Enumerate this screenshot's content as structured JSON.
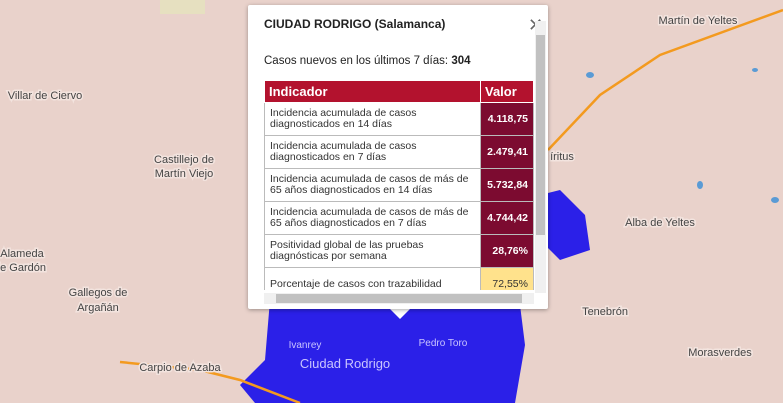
{
  "map": {
    "labels": [
      "Martín de Yeltes",
      "Villar de Ciervo",
      "Castillejo de",
      "Martín Viejo",
      "Alameda",
      "de Gardón",
      "Gallegos de",
      "Argañán",
      "Carpio de Azaba",
      "Ivanrey",
      "Ciudad Rodrigo",
      "Pedro Toro",
      "Tenebrón",
      "Morasverdes",
      "Alba de Yeltes",
      "íritus"
    ]
  },
  "popup": {
    "title": "CIUDAD RODRIGO (Salamanca)",
    "cases_label": "Casos nuevos en los últimos 7 días:",
    "cases_value": "304",
    "table": {
      "header": [
        "Indicador",
        "Valor"
      ],
      "rows": [
        [
          "Incidencia acumulada de casos diagnosticados en 14 días",
          "4.118,75"
        ],
        [
          "Incidencia acumulada de casos diagnosticados en 7 días",
          "2.479,41"
        ],
        [
          "Incidencia acumulada de casos de más de 65 años diagnosticados en 14 días",
          "5.732,84"
        ],
        [
          "Incidencia acumulada de casos de más de 65 años diagnosticados en 7 días",
          "4.744,42"
        ],
        [
          "Positividad global de las pruebas diagnósticas por semana",
          "28,76%"
        ],
        [
          "Porcentaje de casos con trazabilidad",
          "72,55%"
        ]
      ]
    }
  }
}
